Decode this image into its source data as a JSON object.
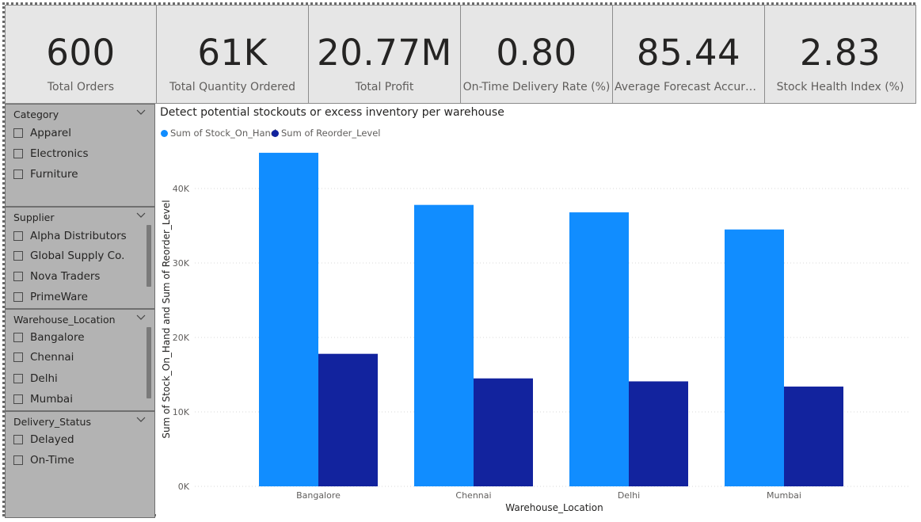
{
  "kpis": [
    {
      "value": "600",
      "label": "Total Orders"
    },
    {
      "value": "61K",
      "label": "Total Quantity Ordered"
    },
    {
      "value": "20.77M",
      "label": "Total Profit"
    },
    {
      "value": "0.80",
      "label": "On-Time Delivery Rate (%)"
    },
    {
      "value": "85.44",
      "label": "Average Forecast Accuracy..."
    },
    {
      "value": "2.83",
      "label": "Stock Health Index (%)"
    }
  ],
  "slicers": [
    {
      "header": "Category",
      "items": [
        "Apparel",
        "Electronics",
        "Furniture"
      ]
    },
    {
      "header": "Supplier",
      "items": [
        "Alpha Distributors",
        "Global Supply Co.",
        "Nova Traders",
        "PrimeWare"
      ]
    },
    {
      "header": "Warehouse_Location",
      "items": [
        "Bangalore",
        "Chennai",
        "Delhi",
        "Mumbai"
      ]
    },
    {
      "header": "Delivery_Status",
      "items": [
        "Delayed",
        "On-Time"
      ]
    }
  ],
  "chart_data": {
    "type": "bar",
    "title": "Detect potential stockouts or excess inventory per warehouse",
    "xlabel": "Warehouse_Location",
    "ylabel": "Sum of Stock_On_Hand and Sum of Reorder_Level",
    "categories": [
      "Bangalore",
      "Chennai",
      "Delhi",
      "Mumbai"
    ],
    "series": [
      {
        "name": "Sum of Stock_On_Hand",
        "color": "#118dff",
        "values": [
          44800,
          37800,
          36800,
          34500
        ]
      },
      {
        "name": "Sum of Reorder_Level",
        "color": "#12239e",
        "values": [
          17800,
          14500,
          14100,
          13400
        ]
      }
    ],
    "ylim": [
      0,
      45000
    ],
    "yticks": [
      0,
      10000,
      20000,
      30000,
      40000
    ],
    "ytick_labels": [
      "0K",
      "10K",
      "20K",
      "30K",
      "40K"
    ],
    "legend_position": "top-left",
    "grid": true
  }
}
